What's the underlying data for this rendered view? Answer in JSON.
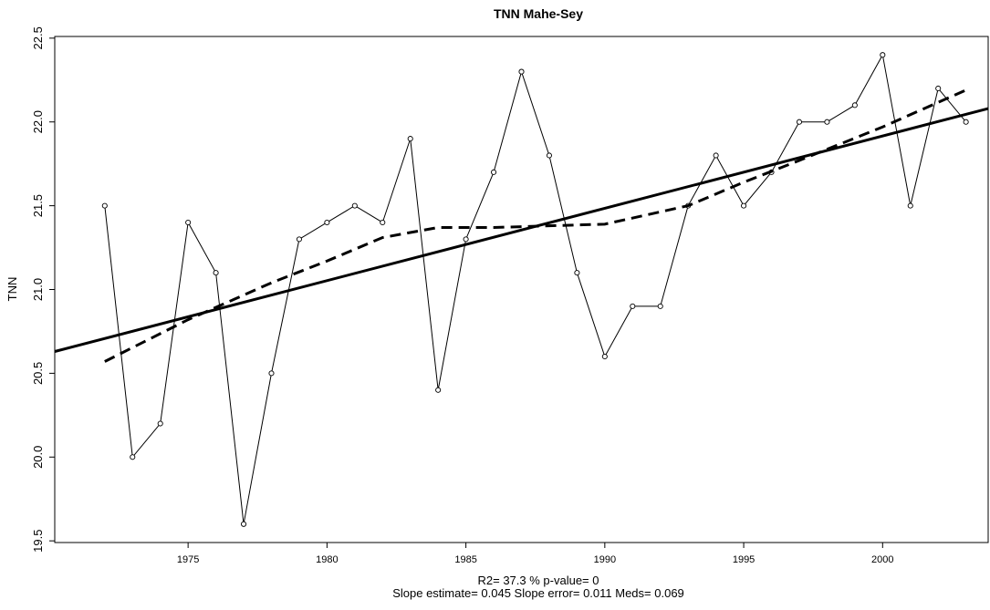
{
  "chart_data": {
    "type": "line",
    "title": "TNN   Mahe-Sey",
    "y_label": "TNN",
    "footer": [
      "R2= 37.3 % p-value= 0",
      "Slope estimate= 0.045  Slope error= 0.011  Meds= 0.069"
    ],
    "xlim": [
      1970.2,
      2003.8
    ],
    "ylim": [
      19.49,
      22.51
    ],
    "xticks": [
      1975,
      1980,
      1985,
      1990,
      1995,
      2000
    ],
    "yticks": [
      19.5,
      {
        "value": 20,
        "label": "20.0"
      },
      20.5,
      {
        "value": 21,
        "label": "21.0"
      },
      21.5,
      {
        "value": 22,
        "label": "22.0"
      },
      22.5
    ],
    "series": [
      {
        "color": "#000000",
        "style": "markers",
        "width": 1,
        "x": [
          1972,
          1973,
          1974,
          1975,
          1976,
          1977,
          1978,
          1979,
          1980,
          1981,
          1982,
          1983,
          1984,
          1985,
          1986,
          1987,
          1988,
          1989,
          1990,
          1991,
          1992,
          1993,
          1994,
          1995,
          1996,
          1997,
          1998,
          1999,
          2000,
          2001,
          2002,
          2003
        ],
        "values": [
          21.5,
          20.0,
          20.2,
          21.4,
          21.1,
          19.6,
          20.5,
          21.3,
          21.4,
          21.5,
          21.4,
          21.9,
          20.4,
          21.3,
          21.7,
          22.3,
          21.8,
          21.1,
          20.6,
          20.9,
          20.9,
          21.5,
          21.8,
          21.5,
          21.7,
          22.0,
          22.0,
          22.1,
          22.4,
          21.5,
          22.2,
          22.0
        ]
      },
      {
        "color": "#000000",
        "style": "solid",
        "width": 3,
        "x": [
          1970.2,
          2003.8
        ],
        "values": [
          20.63,
          22.08
        ]
      },
      {
        "color": "#000000",
        "style": "dash",
        "width": 3,
        "x": [
          1972,
          1975,
          1978,
          1980,
          1982,
          1984,
          1986,
          1988,
          1990,
          1993,
          1995,
          1997,
          2000,
          2003
        ],
        "values": [
          20.57,
          20.82,
          21.04,
          21.17,
          21.31,
          21.37,
          21.37,
          21.38,
          21.39,
          21.5,
          21.64,
          21.77,
          21.97,
          22.19
        ]
      }
    ]
  }
}
